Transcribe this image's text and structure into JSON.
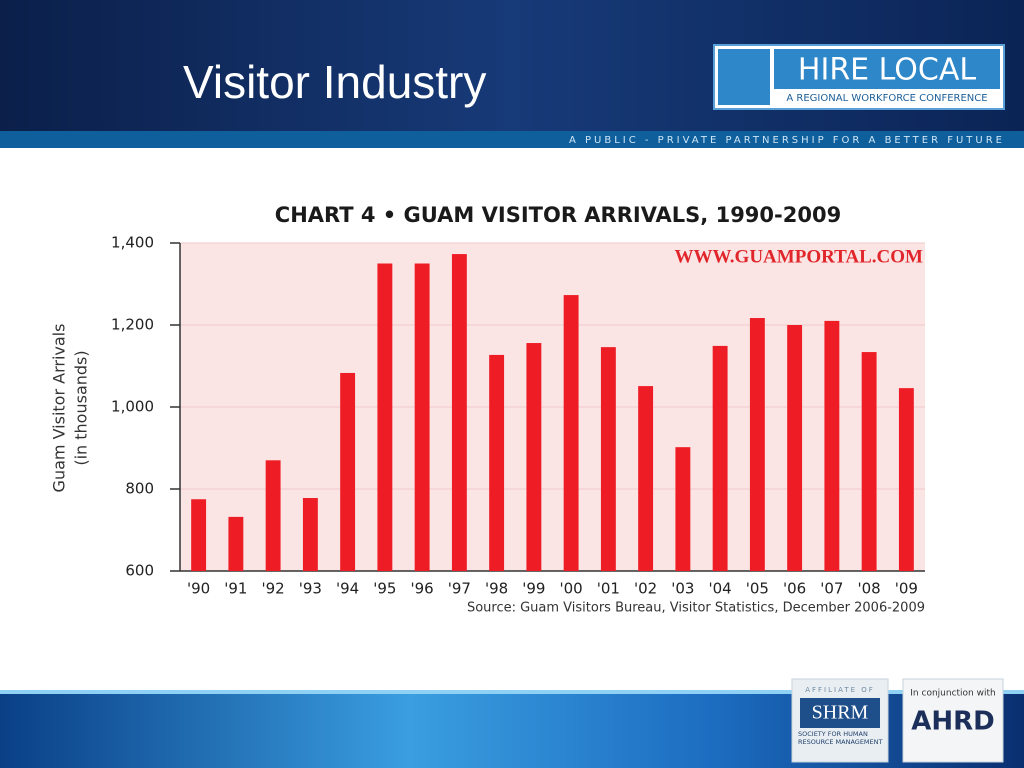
{
  "slide": {
    "title": "Visitor Industry",
    "logo_title": "HIRE LOCAL",
    "logo_subtitle": "A REGIONAL WORKFORCE CONFERENCE",
    "tagline": "A PUBLIC - PRIVATE PARTNERSHIP FOR A BETTER FUTURE",
    "affiliate_label": "AFFILIATE OF",
    "shrm": "SHRM",
    "shrm_name": "SOCIETY FOR HUMAN RESOURCE MANAGEMENT",
    "conjunction": "In conjunction with",
    "ahrd": "AHRD"
  },
  "chart_data": {
    "type": "bar",
    "title": "CHART 4 • GUAM VISITOR ARRIVALS, 1990-2009",
    "watermark": "WWW.GUAMPORTAL.COM",
    "y_label": "Guam Visitor Arrivals",
    "y_label_sub": "(in thousands)",
    "source": "Source: Guam Visitors Bureau, Visitor Statistics, December 2006-2009",
    "categories": [
      "'90",
      "'91",
      "'92",
      "'93",
      "'94",
      "'95",
      "'96",
      "'97",
      "'98",
      "'99",
      "'00",
      "'01",
      "'02",
      "'03",
      "'04",
      "'05",
      "'06",
      "'07",
      "'08",
      "'09"
    ],
    "values": [
      775,
      732,
      870,
      778,
      1083,
      1350,
      1350,
      1373,
      1127,
      1156,
      1273,
      1146,
      1051,
      902,
      1149,
      1217,
      1200,
      1210,
      1134,
      1046
    ],
    "color": "#ee1c24",
    "ylim": [
      600,
      1400
    ],
    "yticks": [
      600,
      800,
      {
        "value": 1000,
        "label": "1,000"
      },
      {
        "value": 1200,
        "label": "1,200"
      },
      {
        "value": 1400,
        "label": "1,400"
      }
    ],
    "grid": true
  }
}
